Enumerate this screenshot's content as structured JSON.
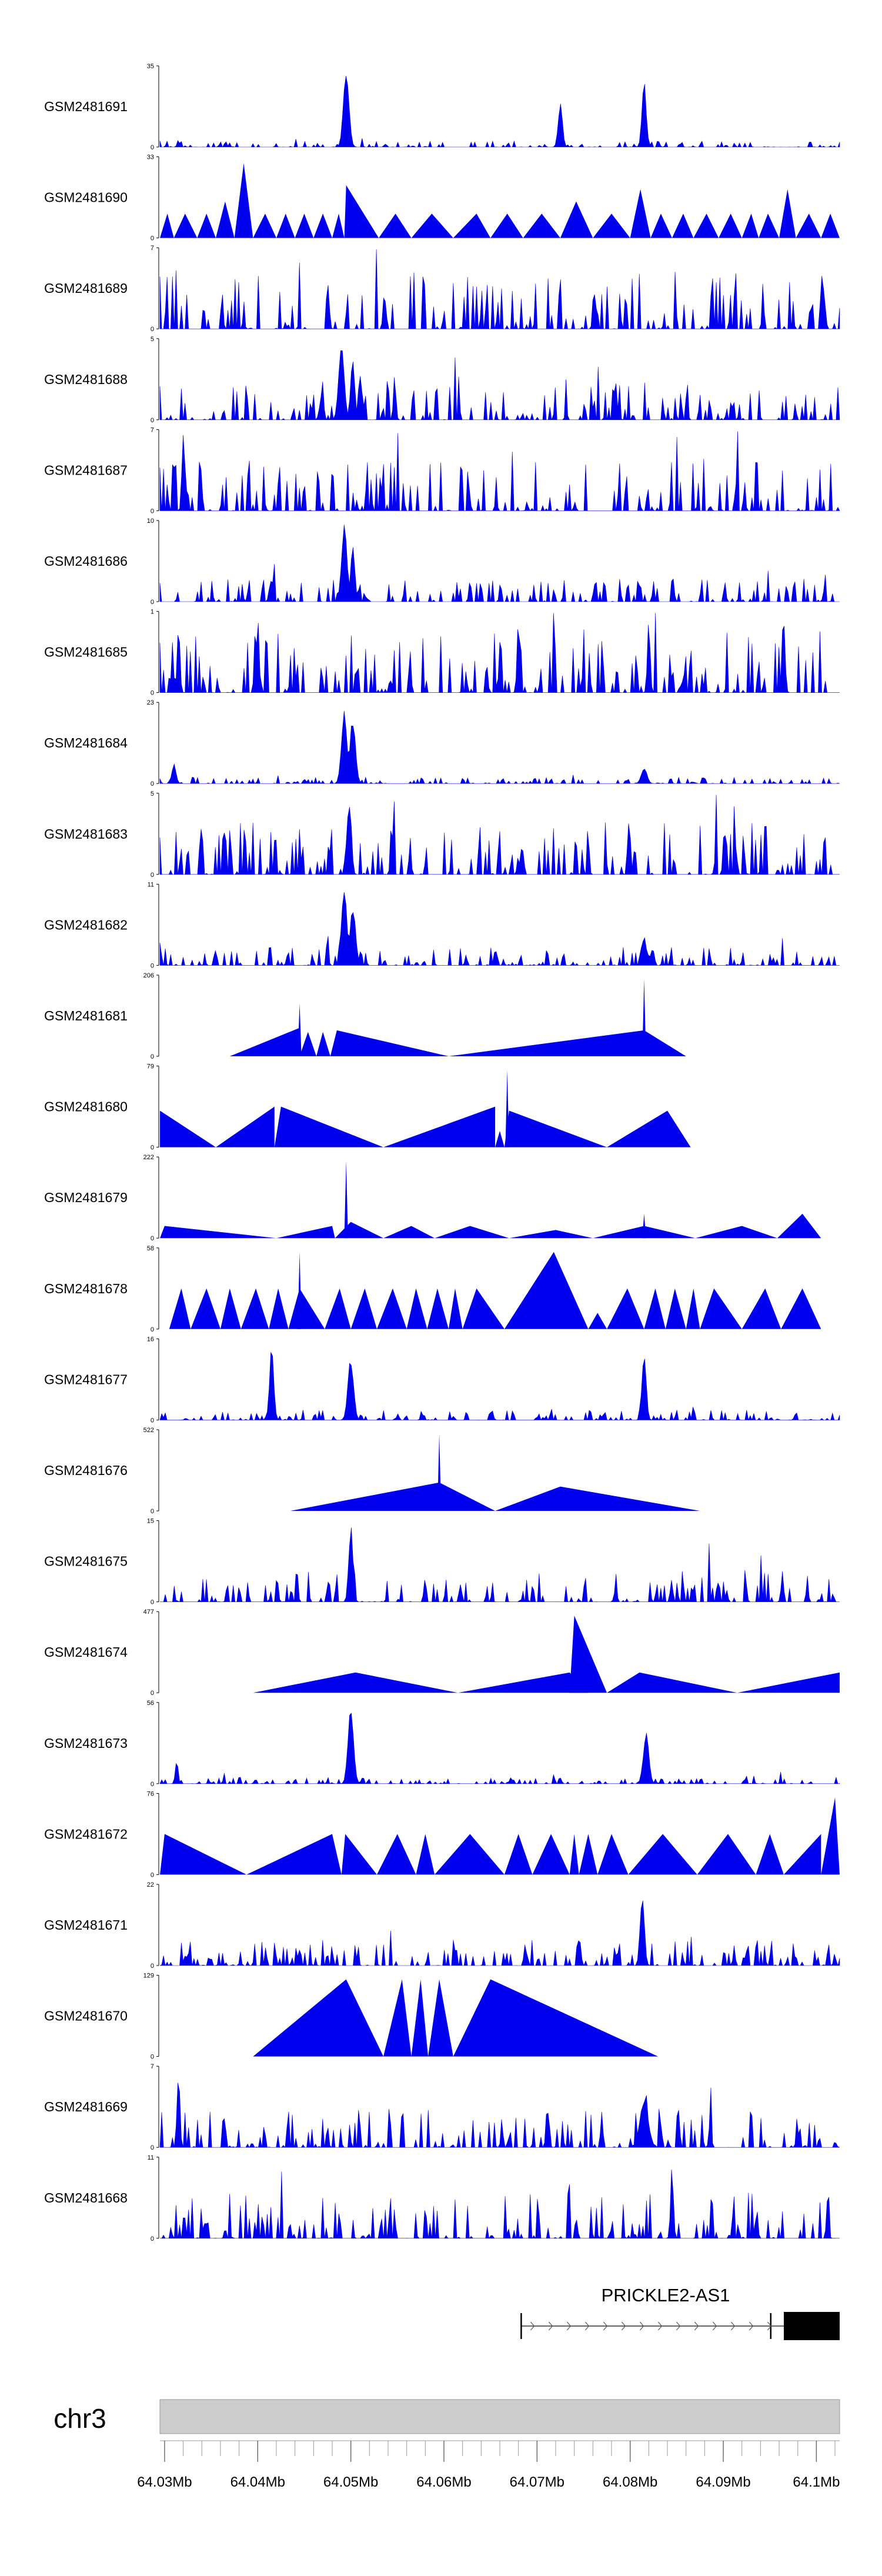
{
  "chart_data": {
    "type": "area",
    "title": "",
    "chromosome": "chr3",
    "xlim_mb": [
      64.0295,
      64.1025
    ],
    "x_ticks": [
      "64.03Mb",
      "64.04Mb",
      "64.05Mb",
      "64.06Mb",
      "64.07Mb",
      "64.08Mb",
      "64.09Mb",
      "64.1Mb"
    ],
    "x_tick_values_mb": [
      64.03,
      64.04,
      64.05,
      64.06,
      64.07,
      64.08,
      64.09,
      64.1
    ],
    "fill_color": "#0000ee",
    "gene": {
      "name": "PRICKLE2-AS1",
      "start_mb": 64.0683,
      "end_mb": 64.1025,
      "strand": "+",
      "exon_mb": [
        64.0965,
        64.1025
      ],
      "internal_mark_mb": 64.0951
    },
    "tracks": [
      {
        "name": "GSM2481691",
        "ymax": "35",
        "style": "noisy",
        "base": 0.05,
        "peaks": [
          [
            64.0495,
            0.95,
            0.0004
          ],
          [
            64.0725,
            0.55,
            0.0003
          ],
          [
            64.0815,
            0.85,
            0.0003
          ]
        ]
      },
      {
        "name": "GSM2481690",
        "ymax": "33",
        "style": "triangles",
        "tri": [
          [
            64.0295,
            64.031,
            64.0303,
            0.3
          ],
          [
            64.031,
            64.0335,
            64.0322,
            0.3
          ],
          [
            64.0335,
            64.0355,
            64.0345,
            0.3
          ],
          [
            64.0355,
            64.0375,
            64.0365,
            0.45
          ],
          [
            64.0375,
            64.0395,
            64.0385,
            0.92
          ],
          [
            64.0395,
            64.042,
            64.0408,
            0.3
          ],
          [
            64.042,
            64.044,
            64.043,
            0.3
          ],
          [
            64.044,
            64.046,
            64.045,
            0.3
          ],
          [
            64.046,
            64.048,
            64.047,
            0.3
          ],
          [
            64.048,
            64.0493,
            64.0487,
            0.3
          ],
          [
            64.0493,
            64.053,
            64.0495,
            0.65
          ],
          [
            64.053,
            64.0565,
            64.0548,
            0.3
          ],
          [
            64.0565,
            64.061,
            64.0587,
            0.3
          ],
          [
            64.061,
            64.065,
            64.0635,
            0.3
          ],
          [
            64.065,
            64.0685,
            64.0668,
            0.3
          ],
          [
            64.0685,
            64.0725,
            64.0705,
            0.3
          ],
          [
            64.0725,
            64.076,
            64.0742,
            0.45
          ],
          [
            64.076,
            64.08,
            64.078,
            0.3
          ],
          [
            64.08,
            64.0822,
            64.0811,
            0.6
          ],
          [
            64.0822,
            64.0845,
            64.0833,
            0.3
          ],
          [
            64.0845,
            64.0868,
            64.0857,
            0.3
          ],
          [
            64.0868,
            64.0895,
            64.0882,
            0.3
          ],
          [
            64.0895,
            64.092,
            64.0908,
            0.3
          ],
          [
            64.092,
            64.0938,
            64.093,
            0.3
          ],
          [
            64.0938,
            64.096,
            64.0948,
            0.3
          ],
          [
            64.096,
            64.0978,
            64.0969,
            0.6
          ],
          [
            64.0978,
            64.1005,
            64.0992,
            0.3
          ],
          [
            64.1005,
            64.1025,
            64.1015,
            0.3
          ]
        ]
      },
      {
        "name": "GSM2481689",
        "ymax": "7",
        "style": "noisy",
        "base": 0.45,
        "peaks": []
      },
      {
        "name": "GSM2481688",
        "ymax": "5",
        "style": "noisy",
        "base": 0.3,
        "peaks": [
          [
            64.049,
            0.95,
            0.0004
          ],
          [
            64.0502,
            0.75,
            0.0003
          ]
        ]
      },
      {
        "name": "GSM2481687",
        "ymax": "7",
        "style": "noisy",
        "base": 0.4,
        "peaks": [
          [
            64.032,
            0.95,
            0.0002
          ]
        ]
      },
      {
        "name": "GSM2481686",
        "ymax": "10",
        "style": "noisy",
        "base": 0.18,
        "peaks": [
          [
            64.0493,
            0.95,
            0.0004
          ],
          [
            64.0502,
            0.7,
            0.0003
          ]
        ]
      },
      {
        "name": "GSM2481685",
        "ymax": "1",
        "style": "noisy",
        "base": 0.5,
        "peaks": [
          [
            64.0315,
            0.95,
            0.0002
          ],
          [
            64.04,
            0.95,
            0.0002
          ],
          [
            64.068,
            0.95,
            0.0002
          ],
          [
            64.082,
            0.95,
            0.0002
          ],
          [
            64.0965,
            0.95,
            0.0002
          ]
        ]
      },
      {
        "name": "GSM2481684",
        "ymax": "23",
        "style": "noisy",
        "base": 0.05,
        "peaks": [
          [
            64.0493,
            0.95,
            0.0004
          ],
          [
            64.0502,
            0.8,
            0.0004
          ],
          [
            64.031,
            0.25,
            0.0003
          ],
          [
            64.0815,
            0.2,
            0.0004
          ]
        ]
      },
      {
        "name": "GSM2481683",
        "ymax": "5",
        "style": "noisy",
        "base": 0.4,
        "peaks": [
          [
            64.0498,
            0.95,
            0.0003
          ]
        ]
      },
      {
        "name": "GSM2481682",
        "ymax": "11",
        "style": "noisy",
        "base": 0.14,
        "peaks": [
          [
            64.0493,
            0.95,
            0.0004
          ],
          [
            64.0502,
            0.75,
            0.0004
          ],
          [
            64.0815,
            0.4,
            0.0003
          ]
        ]
      },
      {
        "name": "GSM2481681",
        "ymax": "206",
        "style": "triangles",
        "tri": [
          [
            64.037,
            64.0445,
            64.0445,
            0.35
          ],
          [
            64.0445,
            64.0463,
            64.0454,
            0.3
          ],
          [
            64.0463,
            64.0478,
            64.047,
            0.3
          ],
          [
            64.0478,
            64.0605,
            64.0485,
            0.32
          ],
          [
            64.0605,
            64.086,
            64.0815,
            0.32
          ]
        ],
        "peaks": [
          [
            64.0445,
            0.65,
            0.0002
          ],
          [
            64.0815,
            0.95,
            0.0002
          ]
        ]
      },
      {
        "name": "GSM2481680",
        "ymax": "79",
        "style": "triangles",
        "tri": [
          [
            64.0295,
            64.0355,
            64.0295,
            0.45
          ],
          [
            64.0355,
            64.0418,
            64.0418,
            0.5
          ],
          [
            64.0418,
            64.0535,
            64.0425,
            0.5
          ],
          [
            64.0535,
            64.0655,
            64.0655,
            0.5
          ],
          [
            64.0655,
            64.0665,
            64.066,
            0.2
          ],
          [
            64.0665,
            64.0775,
            64.067,
            0.45
          ],
          [
            64.0775,
            64.0865,
            64.084,
            0.45
          ]
        ],
        "peaks": [
          [
            64.0668,
            0.95,
            0.0002
          ]
        ]
      },
      {
        "name": "GSM2481679",
        "ymax": "222",
        "style": "triangles",
        "tri": [
          [
            64.0295,
            64.042,
            64.03,
            0.15
          ],
          [
            64.042,
            64.0483,
            64.048,
            0.15
          ],
          [
            64.0483,
            64.0535,
            64.05,
            0.2
          ],
          [
            64.0535,
            64.059,
            64.0565,
            0.15
          ],
          [
            64.059,
            64.067,
            64.0628,
            0.15
          ],
          [
            64.067,
            64.076,
            64.072,
            0.1
          ],
          [
            64.076,
            64.087,
            64.0815,
            0.15
          ],
          [
            64.087,
            64.0958,
            64.092,
            0.15
          ],
          [
            64.0958,
            64.1005,
            64.0985,
            0.3
          ]
        ],
        "peaks": [
          [
            64.0495,
            0.95,
            0.0002
          ],
          [
            64.0815,
            0.3,
            0.0002
          ]
        ]
      },
      {
        "name": "GSM2481678",
        "ymax": "58",
        "style": "triangles",
        "tri": [
          [
            64.0305,
            64.0328,
            64.0318,
            0.5
          ],
          [
            64.0328,
            64.036,
            64.0345,
            0.5
          ],
          [
            64.036,
            64.0382,
            64.037,
            0.5
          ],
          [
            64.0382,
            64.0412,
            64.0398,
            0.5
          ],
          [
            64.0412,
            64.0433,
            64.0422,
            0.5
          ],
          [
            64.0433,
            64.0472,
            64.0445,
            0.5
          ],
          [
            64.0472,
            64.05,
            64.0488,
            0.5
          ],
          [
            64.05,
            64.0528,
            64.0515,
            0.5
          ],
          [
            64.0528,
            64.056,
            64.0545,
            0.5
          ],
          [
            64.056,
            64.0582,
            64.057,
            0.5
          ],
          [
            64.0582,
            64.0605,
            64.0593,
            0.5
          ],
          [
            64.0605,
            64.062,
            64.0612,
            0.5
          ],
          [
            64.062,
            64.0665,
            64.0635,
            0.5
          ],
          [
            64.0665,
            64.0755,
            64.0718,
            0.95
          ],
          [
            64.0755,
            64.0775,
            64.0765,
            0.2
          ],
          [
            64.0775,
            64.0815,
            64.0797,
            0.5
          ],
          [
            64.0815,
            64.0838,
            64.0827,
            0.5
          ],
          [
            64.0838,
            64.086,
            64.0848,
            0.5
          ],
          [
            64.086,
            64.0875,
            64.0868,
            0.5
          ],
          [
            64.0875,
            64.092,
            64.089,
            0.5
          ],
          [
            64.092,
            64.0962,
            64.0945,
            0.5
          ],
          [
            64.0962,
            64.1005,
            64.0985,
            0.5
          ]
        ],
        "peaks": [
          [
            64.0445,
            0.95,
            0.0002
          ]
        ]
      },
      {
        "name": "GSM2481677",
        "ymax": "16",
        "style": "noisy",
        "base": 0.08,
        "peaks": [
          [
            64.0415,
            0.95,
            0.0003
          ],
          [
            64.05,
            0.8,
            0.0004
          ],
          [
            64.0815,
            0.9,
            0.0003
          ]
        ]
      },
      {
        "name": "GSM2481676",
        "ymax": "522",
        "style": "triangles",
        "tri": [
          [
            64.0435,
            64.0655,
            64.0595,
            0.35
          ],
          [
            64.0655,
            64.0875,
            64.0725,
            0.3
          ]
        ],
        "peaks": [
          [
            64.0595,
            0.95,
            0.0002
          ]
        ]
      },
      {
        "name": "GSM2481675",
        "ymax": "15",
        "style": "noisy",
        "base": 0.25,
        "peaks": [
          [
            64.05,
            0.95,
            0.0003
          ]
        ]
      },
      {
        "name": "GSM2481674",
        "ymax": "477",
        "style": "triangles",
        "tri": [
          [
            64.0395,
            64.0615,
            64.0505,
            0.25
          ],
          [
            64.0615,
            64.0755,
            64.0735,
            0.25
          ],
          [
            64.0735,
            64.0775,
            64.074,
            0.95
          ],
          [
            64.0775,
            64.0915,
            64.081,
            0.25
          ],
          [
            64.0915,
            64.1025,
            64.1025,
            0.25
          ]
        ]
      },
      {
        "name": "GSM2481673",
        "ymax": "56",
        "style": "noisy",
        "base": 0.05,
        "peaks": [
          [
            64.05,
            0.95,
            0.0004
          ],
          [
            64.0817,
            0.65,
            0.0004
          ],
          [
            64.0313,
            0.3,
            0.0002
          ]
        ]
      },
      {
        "name": "GSM2481672",
        "ymax": "76",
        "style": "triangles",
        "tri": [
          [
            64.0295,
            64.0388,
            64.03,
            0.5
          ],
          [
            64.0388,
            64.049,
            64.048,
            0.5
          ],
          [
            64.049,
            64.0528,
            64.0494,
            0.5
          ],
          [
            64.0528,
            64.057,
            64.055,
            0.5
          ],
          [
            64.057,
            64.059,
            64.058,
            0.5
          ],
          [
            64.059,
            64.0665,
            64.0628,
            0.5
          ],
          [
            64.0665,
            64.0695,
            64.068,
            0.5
          ],
          [
            64.0695,
            64.0735,
            64.0715,
            0.5
          ],
          [
            64.0735,
            64.0745,
            64.074,
            0.5
          ],
          [
            64.0745,
            64.0765,
            64.0755,
            0.5
          ],
          [
            64.0765,
            64.0798,
            64.078,
            0.5
          ],
          [
            64.0798,
            64.0872,
            64.0835,
            0.5
          ],
          [
            64.0872,
            64.0935,
            64.0905,
            0.5
          ],
          [
            64.0935,
            64.0965,
            64.095,
            0.5
          ],
          [
            64.0965,
            64.1005,
            64.1005,
            0.5
          ],
          [
            64.1005,
            64.1025,
            64.102,
            0.95
          ]
        ]
      },
      {
        "name": "GSM2481671",
        "ymax": "22",
        "style": "noisy",
        "base": 0.2,
        "peaks": [
          [
            64.0813,
            0.95,
            0.0003
          ]
        ]
      },
      {
        "name": "GSM2481670",
        "ymax": "129",
        "style": "triangles",
        "tri": [
          [
            64.0395,
            64.0535,
            64.0495,
            0.95
          ],
          [
            64.0535,
            64.0565,
            64.0555,
            0.95
          ],
          [
            64.0565,
            64.0583,
            64.0575,
            0.95
          ],
          [
            64.0583,
            64.061,
            64.0595,
            0.95
          ],
          [
            64.061,
            64.083,
            64.065,
            0.95
          ]
        ]
      },
      {
        "name": "GSM2481669",
        "ymax": "7",
        "style": "noisy",
        "base": 0.3,
        "peaks": [
          [
            64.0315,
            0.95,
            0.0002
          ],
          [
            64.0815,
            0.6,
            0.0006
          ]
        ]
      },
      {
        "name": "GSM2481668",
        "ymax": "11",
        "style": "noisy",
        "base": 0.35,
        "peaks": [
          [
            64.0845,
            0.95,
            0.0002
          ]
        ]
      }
    ]
  }
}
